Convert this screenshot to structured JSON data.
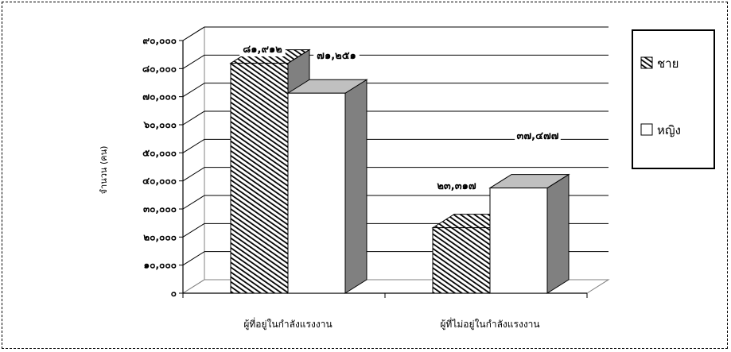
{
  "chart_data": {
    "type": "bar",
    "style": "3d-clustered",
    "ylabel": "จำนวน (คน)",
    "categories": [
      "ผู้ที่อยู่ในกำลังแรงงาน",
      "ผู้ที่ไม่อยู่ในกำลังแรงงาน"
    ],
    "series": [
      {
        "name": "ชาย",
        "values": [
          81912,
          23317
        ],
        "labels": [
          "๘๑,๙๑๒",
          "๒๓,๓๑๗"
        ],
        "fill": "hatched"
      },
      {
        "name": "หญิง",
        "values": [
          71251,
          37477
        ],
        "labels": [
          "๗๑,๒๕๑",
          "๓๗,๔๗๗"
        ],
        "fill": "#ffffff"
      }
    ],
    "ylim": [
      0,
      90000
    ],
    "yticks": [
      {
        "value": 0,
        "label": "๐"
      },
      {
        "value": 10000,
        "label": "๑๐,๐๐๐"
      },
      {
        "value": 20000,
        "label": "๒๐,๐๐๐"
      },
      {
        "value": 30000,
        "label": "๓๐,๐๐๐"
      },
      {
        "value": 40000,
        "label": "๔๐,๐๐๐"
      },
      {
        "value": 50000,
        "label": "๕๐,๐๐๐"
      },
      {
        "value": 60000,
        "label": "๖๐,๐๐๐"
      },
      {
        "value": 70000,
        "label": "๗๐,๐๐๐"
      },
      {
        "value": 80000,
        "label": "๘๐,๐๐๐"
      },
      {
        "value": 90000,
        "label": "๙๐,๐๐๐"
      }
    ],
    "grid": true,
    "legend": "right",
    "colors": {
      "side": "#808080",
      "top": "#c0c0c0",
      "hatch": "#404040"
    }
  }
}
